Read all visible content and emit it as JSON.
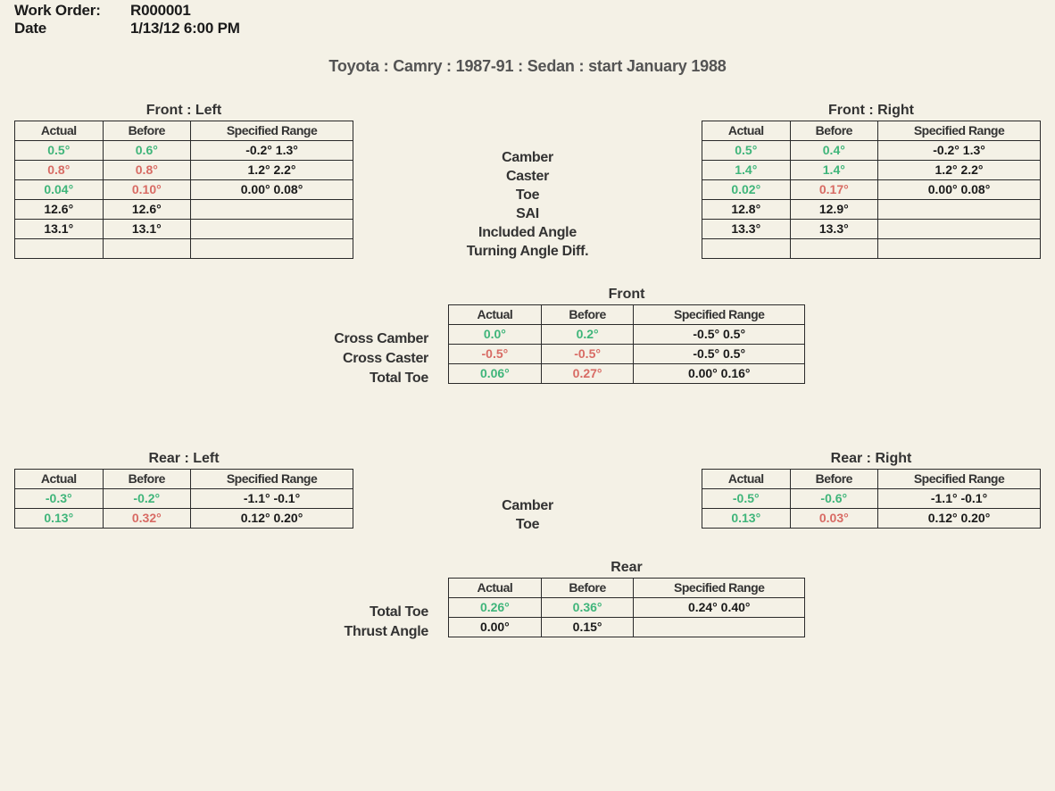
{
  "header": {
    "work_order_label": "Work Order:",
    "work_order": "R000001",
    "date_label": "Date",
    "date": "1/13/12 6:00 PM"
  },
  "vehicle_title": "Toyota : Camry : 1987-91 : Sedan : start January 1988",
  "colors": {
    "green": "#3fb57a",
    "red": "#d86b64",
    "black": "#1a1a1a",
    "grey": "#545454",
    "border": "#2a2a2a",
    "bg": "#f4f1e6"
  },
  "col_headers": {
    "actual": "Actual",
    "before": "Before",
    "spec": "Specified Range"
  },
  "front_left_title": "Front : Left",
  "front_right_title": "Front : Right",
  "front_rows_labels": [
    "Camber",
    "Caster",
    "Toe",
    "SAI",
    "Included Angle",
    "Turning Angle Diff."
  ],
  "front_left": [
    {
      "actual": "0.5°",
      "a_cls": "green",
      "before": "0.6°",
      "b_cls": "green",
      "spec": "-0.2° 1.3°"
    },
    {
      "actual": "0.8°",
      "a_cls": "red",
      "before": "0.8°",
      "b_cls": "red",
      "spec": "1.2° 2.2°"
    },
    {
      "actual": "0.04°",
      "a_cls": "green",
      "before": "0.10°",
      "b_cls": "red",
      "spec": "0.00° 0.08°"
    },
    {
      "actual": "12.6°",
      "a_cls": "black",
      "before": "12.6°",
      "b_cls": "black",
      "spec": ""
    },
    {
      "actual": "13.1°",
      "a_cls": "black",
      "before": "13.1°",
      "b_cls": "black",
      "spec": ""
    },
    {
      "actual": "",
      "a_cls": "black",
      "before": "",
      "b_cls": "black",
      "spec": ""
    }
  ],
  "front_right": [
    {
      "actual": "0.5°",
      "a_cls": "green",
      "before": "0.4°",
      "b_cls": "green",
      "spec": "-0.2° 1.3°"
    },
    {
      "actual": "1.4°",
      "a_cls": "green",
      "before": "1.4°",
      "b_cls": "green",
      "spec": "1.2° 2.2°"
    },
    {
      "actual": "0.02°",
      "a_cls": "green",
      "before": "0.17°",
      "b_cls": "red",
      "spec": "0.00° 0.08°"
    },
    {
      "actual": "12.8°",
      "a_cls": "black",
      "before": "12.9°",
      "b_cls": "black",
      "spec": ""
    },
    {
      "actual": "13.3°",
      "a_cls": "black",
      "before": "13.3°",
      "b_cls": "black",
      "spec": ""
    },
    {
      "actual": "",
      "a_cls": "black",
      "before": "",
      "b_cls": "black",
      "spec": ""
    }
  ],
  "front_summary_title": "Front",
  "front_summary_labels": [
    "Cross Camber",
    "Cross Caster",
    "Total Toe"
  ],
  "front_summary": [
    {
      "actual": "0.0°",
      "a_cls": "green",
      "before": "0.2°",
      "b_cls": "green",
      "spec": "-0.5° 0.5°"
    },
    {
      "actual": "-0.5°",
      "a_cls": "red",
      "before": "-0.5°",
      "b_cls": "red",
      "spec": "-0.5° 0.5°"
    },
    {
      "actual": "0.06°",
      "a_cls": "green",
      "before": "0.27°",
      "b_cls": "red",
      "spec": "0.00° 0.16°"
    }
  ],
  "rear_left_title": "Rear : Left",
  "rear_right_title": "Rear : Right",
  "rear_rows_labels": [
    "Camber",
    "Toe"
  ],
  "rear_left": [
    {
      "actual": "-0.3°",
      "a_cls": "green",
      "before": "-0.2°",
      "b_cls": "green",
      "spec": "-1.1° -0.1°"
    },
    {
      "actual": "0.13°",
      "a_cls": "green",
      "before": "0.32°",
      "b_cls": "red",
      "spec": "0.12° 0.20°"
    }
  ],
  "rear_right": [
    {
      "actual": "-0.5°",
      "a_cls": "green",
      "before": "-0.6°",
      "b_cls": "green",
      "spec": "-1.1° -0.1°"
    },
    {
      "actual": "0.13°",
      "a_cls": "green",
      "before": "0.03°",
      "b_cls": "red",
      "spec": "0.12° 0.20°"
    }
  ],
  "rear_summary_title": "Rear",
  "rear_summary_labels": [
    "Total Toe",
    "Thrust Angle"
  ],
  "rear_summary": [
    {
      "actual": "0.26°",
      "a_cls": "green",
      "before": "0.36°",
      "b_cls": "green",
      "spec": "0.24° 0.40°"
    },
    {
      "actual": "0.00°",
      "a_cls": "black",
      "before": "0.15°",
      "b_cls": "black",
      "spec": ""
    }
  ]
}
